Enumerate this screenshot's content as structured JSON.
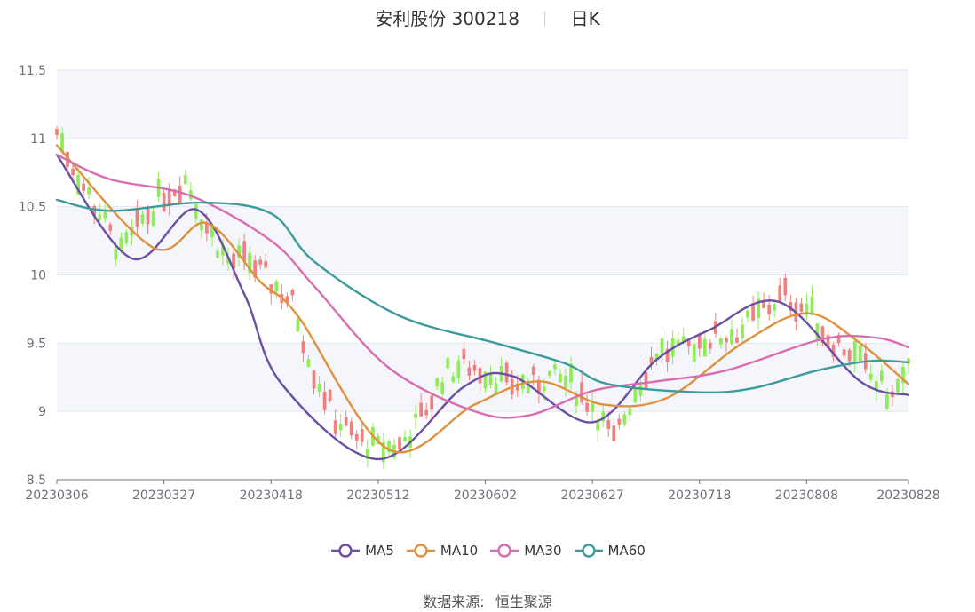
{
  "title": {
    "name": "安利股份 300218",
    "period": "日K"
  },
  "source": {
    "label": "数据来源:",
    "value": "恒生聚源"
  },
  "colors": {
    "up": "#f08080",
    "down": "#8fec55",
    "MA5": "#6a4fa3",
    "MA10": "#e0913f",
    "MA30": "#d96db0",
    "MA60": "#3f9b9b",
    "band": "#f4f6fb",
    "grid": "#e0e6f1"
  },
  "chart_data": {
    "type": "candlestick",
    "y_axis": {
      "min": 8.5,
      "max": 11.5,
      "ticks": [
        8.5,
        9,
        9.5,
        10,
        10.5,
        11,
        11.5
      ]
    },
    "x_axis": {
      "labels": [
        "20230306",
        "20230327",
        "20230418",
        "20230512",
        "20230602",
        "20230627",
        "20230718",
        "20230808",
        "20230828"
      ]
    },
    "legend": [
      "MA5",
      "MA10",
      "MA30",
      "MA60"
    ],
    "ma_anchor_x": [
      0,
      20,
      40,
      60,
      80,
      100,
      120,
      140,
      159
    ],
    "ma_anchors": {
      "MA5": [
        10.88,
        10.12,
        10.48,
        9.86,
        9.2,
        8.65,
        9.18,
        9.26,
        8.92,
        9.38,
        9.6,
        9.8,
        9.22,
        9.12
      ],
      "MA10": [
        10.95,
        10.2,
        10.38,
        9.95,
        9.7,
        8.72,
        9.05,
        9.22,
        9.05,
        9.1,
        9.5,
        9.72,
        9.5,
        9.2
      ],
      "MA30": [
        10.88,
        10.7,
        10.58,
        10.25,
        9.92,
        9.32,
        9.0,
        8.97,
        9.15,
        9.22,
        9.3,
        9.53,
        9.54,
        9.47
      ],
      "MA60": [
        10.55,
        10.47,
        10.53,
        10.45,
        10.1,
        9.7,
        9.5,
        9.35,
        9.2,
        9.14,
        9.17,
        9.3,
        9.37,
        9.36
      ]
    },
    "ma_anchor_index": {
      "MA5": [
        0,
        14,
        26,
        35,
        42,
        60,
        76,
        85,
        100,
        112,
        122,
        135,
        150,
        159
      ],
      "MA10": [
        0,
        18,
        28,
        38,
        45,
        62,
        78,
        90,
        102,
        114,
        128,
        140,
        150,
        159
      ],
      "MA30": [
        0,
        10,
        25,
        40,
        48,
        62,
        78,
        88,
        100,
        112,
        125,
        143,
        153,
        159
      ],
      "MA60": [
        0,
        10,
        27,
        40,
        48,
        64,
        82,
        95,
        103,
        120,
        130,
        142,
        152,
        159
      ]
    },
    "close_path": [
      [
        0,
        11.05
      ],
      [
        4,
        10.72
      ],
      [
        8,
        10.45
      ],
      [
        12,
        10.15
      ],
      [
        16,
        10.4
      ],
      [
        20,
        10.6
      ],
      [
        24,
        10.7
      ],
      [
        28,
        10.35
      ],
      [
        32,
        10.1
      ],
      [
        36,
        10.1
      ],
      [
        40,
        9.95
      ],
      [
        44,
        9.8
      ],
      [
        48,
        9.3
      ],
      [
        52,
        8.95
      ],
      [
        56,
        8.8
      ],
      [
        60,
        8.72
      ],
      [
        64,
        8.75
      ],
      [
        68,
        8.95
      ],
      [
        72,
        9.25
      ],
      [
        76,
        9.35
      ],
      [
        80,
        9.3
      ],
      [
        84,
        9.2
      ],
      [
        88,
        9.2
      ],
      [
        92,
        9.25
      ],
      [
        96,
        9.2
      ],
      [
        100,
        9.05
      ],
      [
        104,
        8.78
      ],
      [
        108,
        9.15
      ],
      [
        112,
        9.45
      ],
      [
        116,
        9.42
      ],
      [
        120,
        9.52
      ],
      [
        124,
        9.55
      ],
      [
        128,
        9.6
      ],
      [
        132,
        9.75
      ],
      [
        136,
        9.85
      ],
      [
        140,
        9.75
      ],
      [
        144,
        9.55
      ],
      [
        148,
        9.45
      ],
      [
        152,
        9.25
      ],
      [
        156,
        9.1
      ],
      [
        159,
        9.3
      ]
    ],
    "candle_count": 160
  }
}
